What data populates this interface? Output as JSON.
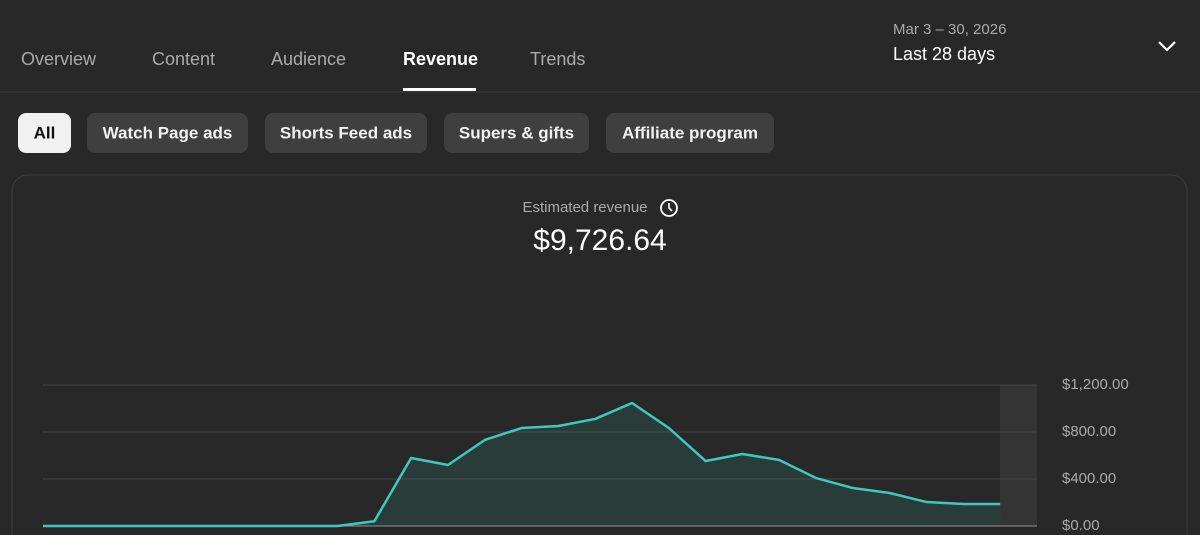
{
  "tabs": [
    {
      "label": "Overview"
    },
    {
      "label": "Content"
    },
    {
      "label": "Audience"
    },
    {
      "label": "Revenue",
      "selected": true
    },
    {
      "label": "Trends"
    }
  ],
  "date_range": {
    "dates": "Mar 3 – 30, 2026",
    "label": "Last 28 days"
  },
  "filters": [
    {
      "label": "All",
      "selected": true
    },
    {
      "label": "Watch Page ads"
    },
    {
      "label": "Shorts Feed ads"
    },
    {
      "label": "Supers & gifts"
    },
    {
      "label": "Affiliate program"
    }
  ],
  "metric": {
    "label": "Estimated revenue",
    "value": "$9,726.64"
  },
  "chart_data": {
    "type": "line",
    "color": "#3ec9bd",
    "area": true,
    "grid": true,
    "values": [
      0,
      0,
      0,
      0,
      0,
      0,
      0,
      0,
      0,
      40,
      579,
      519,
      732,
      834,
      851,
      911,
      1047,
      834,
      553,
      613,
      562,
      408,
      323,
      281,
      204,
      187,
      187,
      null
    ],
    "ylim": [
      0,
      1200
    ],
    "yticks": [
      {
        "value": 0,
        "label": "$0.00"
      },
      {
        "value": 400,
        "label": "$400.00"
      },
      {
        "value": 800,
        "label": "$800.00"
      },
      {
        "value": 1200,
        "label": "$1,200.00"
      }
    ]
  }
}
